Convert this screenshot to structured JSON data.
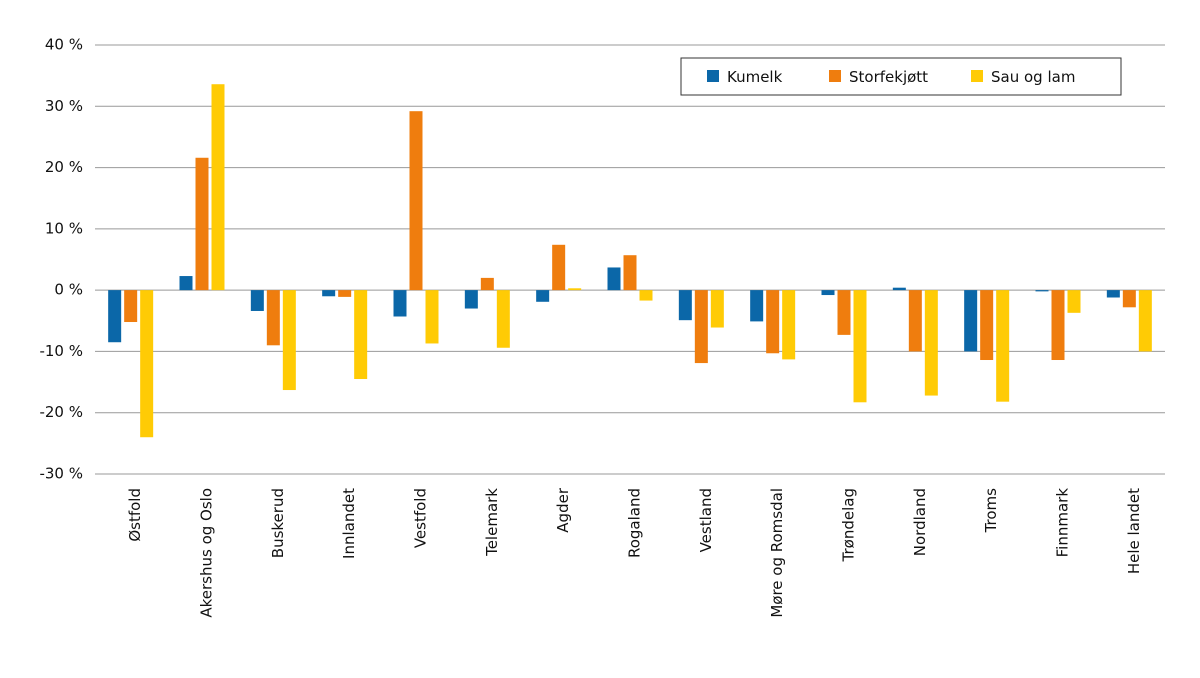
{
  "chart_data": {
    "type": "bar",
    "categories": [
      "Østfold",
      "Akershus og Oslo",
      "Buskerud",
      "Innlandet",
      "Vestfold",
      "Telemark",
      "Agder",
      "Rogaland",
      "Vestland",
      "Møre og Romsdal",
      "Trøndelag",
      "Nordland",
      "Troms",
      "Finnmark",
      "Hele landet"
    ],
    "series": [
      {
        "name": "Kumelk",
        "color": "#0b67a8",
        "values": [
          -8.5,
          2.3,
          -3.4,
          -1,
          -4.3,
          -3,
          -1.9,
          3.7,
          -4.9,
          -5.1,
          -0.8,
          0.4,
          -10,
          -0.2,
          -1.2
        ]
      },
      {
        "name": "Storfekjøtt",
        "color": "#ef7d0e",
        "values": [
          -5.2,
          21.6,
          -9,
          -1.1,
          29.2,
          2,
          7.4,
          5.7,
          -11.9,
          -10.3,
          -7.3,
          -10,
          -11.4,
          -11.4,
          -2.8
        ]
      },
      {
        "name": "Sau og lam",
        "color": "#ffcb05",
        "values": [
          -24,
          33.6,
          -16.3,
          -14.5,
          -8.7,
          -9.4,
          0.3,
          -1.7,
          -6.1,
          -11.3,
          -18.3,
          -17.2,
          -18.2,
          -3.7,
          -10
        ]
      }
    ],
    "ylim": [
      -30,
      40
    ],
    "yticks": [
      {
        "value": -30,
        "label": "-30 %"
      },
      {
        "value": -20,
        "label": "-20 %"
      },
      {
        "value": -10,
        "label": "-10 %"
      },
      {
        "value": 0,
        "label": "0 %"
      },
      {
        "value": 10,
        "label": "10 %"
      },
      {
        "value": 20,
        "label": "20 %"
      },
      {
        "value": 30,
        "label": "30 %"
      },
      {
        "value": 40,
        "label": "40 %"
      }
    ],
    "grid": true,
    "legend_position": "upper right"
  }
}
